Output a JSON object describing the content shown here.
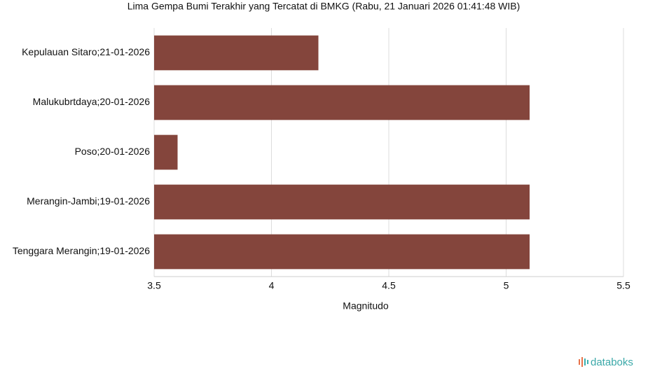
{
  "chart_data": {
    "type": "bar",
    "orientation": "horizontal",
    "title": "Lima Gempa Bumi Terakhir yang Tercatat di BMKG (Rabu, 21 Januari 2026 01:41:48 WIB)",
    "categories": [
      "Kepulauan Sitaro;21-01-2026",
      "Malukubrtdaya;20-01-2026",
      "Poso;20-01-2026",
      "Merangin-Jambi;19-01-2026",
      "Tenggara Merangin;19-01-2026"
    ],
    "values": [
      4.2,
      5.1,
      3.6,
      5.1,
      5.1
    ],
    "color": "#84453c",
    "x_label": "Magnitudo",
    "xlim": [
      3.5,
      5.5
    ],
    "xticks": [
      3.5,
      4,
      4.5,
      5,
      5.5
    ],
    "grid": true,
    "source": "databoks"
  }
}
